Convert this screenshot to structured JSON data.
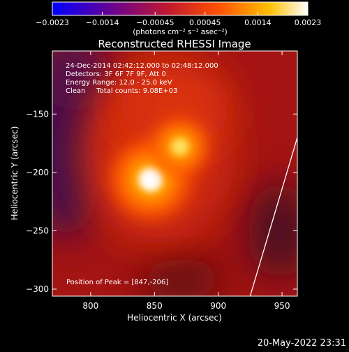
{
  "chart_data": {
    "type": "heatmap",
    "title": "Reconstructed RHESSI Image",
    "xlabel": "Heliocentric X (arcsec)",
    "ylabel": "Heliocentric Y (arcsec)",
    "xlim": [
      770,
      962
    ],
    "ylim": [
      -306,
      -96
    ],
    "x_ticks": [
      800,
      850,
      900,
      950
    ],
    "y_ticks": [
      -150,
      -200,
      -250,
      -300
    ],
    "x_tick_labels": [
      "800",
      "850",
      "900",
      "950"
    ],
    "y_tick_labels": [
      "−150",
      "−200",
      "−250",
      "−300"
    ],
    "colorbar": {
      "min": -0.0023,
      "max": 0.0023,
      "ticks": [
        -0.0023,
        -0.0014,
        -0.00045,
        0.00045,
        0.0014,
        0.0023
      ],
      "tick_labels": [
        "−0.0023",
        "−0.0014",
        "−0.00045",
        "0.00045",
        "0.0014",
        "0.0023"
      ],
      "units_label": "(photons cm⁻² s⁻¹ asec⁻²)",
      "colors": [
        "#0000ff",
        "#6a0090",
        "#cc2020",
        "#ff6000",
        "#ffc000",
        "#ffffff"
      ]
    },
    "annotations": [
      "24-Dec-2014 02:42:12.000 to 02:48:12.000",
      "Detectors: 3F 6F 7F 9F, Att 0",
      "Energy Range: 12.0 - 25.0 keV",
      "Clean     Total counts: 9.08E+03"
    ],
    "peak_label": "Position of Peak = [847,-206]",
    "peak_position": [
      847,
      -206
    ],
    "sources": [
      {
        "x": 847,
        "y": -206,
        "intensity": 0.0023
      },
      {
        "x": 870,
        "y": -178,
        "intensity": 0.0015
      }
    ],
    "limb": [
      [
        962,
        -170
      ],
      [
        925,
        -306
      ]
    ]
  },
  "footer": {
    "timestamp": "20-May-2022 23:31"
  }
}
